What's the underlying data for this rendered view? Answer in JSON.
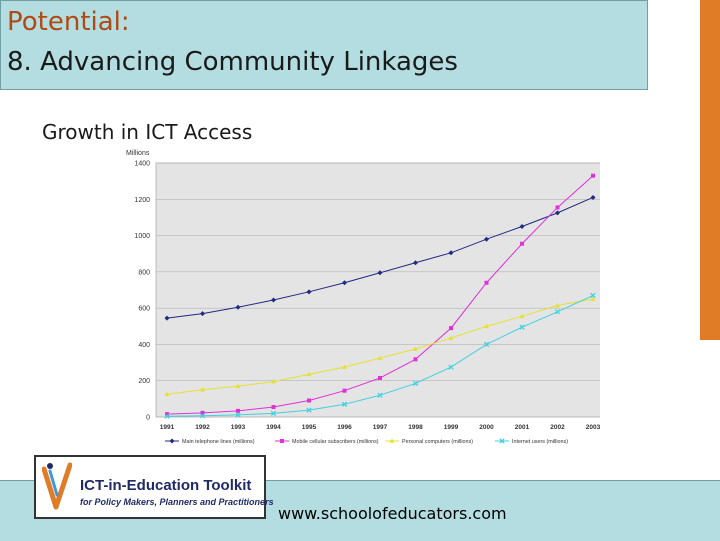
{
  "slide": {
    "title_prefix": "Potential:",
    "title_main": "8. Advancing Community Linkages",
    "subtitle": "Growth in ICT Access",
    "website": "www.schoolofeducators.com"
  },
  "logo": {
    "title": "ICT-in-Education Toolkit",
    "tagline": "for Policy Makers, Planners and Practitioners",
    "icon": "v-swoosh-logo-icon"
  },
  "colors": {
    "title_bar": "#b3dde0",
    "title_accent": "#b04a12",
    "side_bar": "#e07b26"
  },
  "chart_data": {
    "type": "line",
    "ylabel": "Millions",
    "xlabel": "",
    "ylim": [
      0,
      1400
    ],
    "yticks": [
      0,
      200,
      400,
      600,
      800,
      1000,
      1200,
      1400
    ],
    "x": [
      "1991",
      "1992",
      "1993",
      "1994",
      "1995",
      "1996",
      "1997",
      "1998",
      "1999",
      "2000",
      "2001",
      "2002",
      "2003"
    ],
    "grid": true,
    "legend_position": "bottom",
    "series": [
      {
        "name": "Main telephone lines (millions)",
        "color": "#1f2a80",
        "marker": "diamond",
        "values": [
          545,
          570,
          605,
          645,
          690,
          740,
          795,
          850,
          905,
          980,
          1050,
          1125,
          1210
        ]
      },
      {
        "name": "Mobile cellular subscribers (millions)",
        "color": "#e030d8",
        "marker": "square",
        "values": [
          16,
          23,
          34,
          55,
          91,
          145,
          215,
          318,
          490,
          740,
          955,
          1155,
          1330
        ]
      },
      {
        "name": "Personal computers (millions)",
        "color": "#e8e030",
        "marker": "triangle",
        "values": [
          125,
          150,
          170,
          195,
          235,
          275,
          325,
          375,
          435,
          500,
          555,
          615,
          650
        ]
      },
      {
        "name": "Internet users (millions)",
        "color": "#40d0e0",
        "marker": "x",
        "values": [
          4,
          7,
          12,
          20,
          38,
          70,
          120,
          185,
          275,
          400,
          495,
          580,
          670
        ]
      }
    ]
  }
}
